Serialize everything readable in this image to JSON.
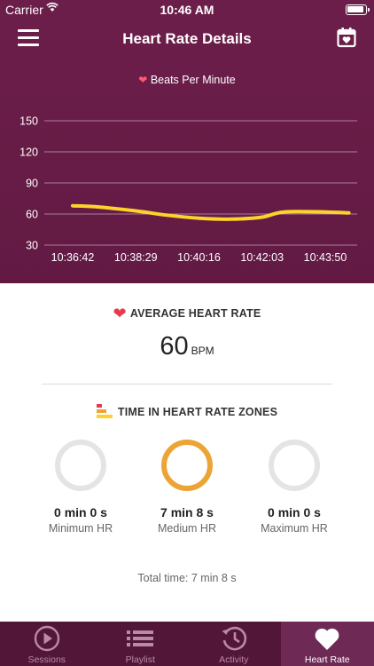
{
  "status_bar": {
    "carrier": "Carrier",
    "time": "10:46 AM"
  },
  "nav": {
    "title": "Heart Rate Details",
    "left_icon": "menu-icon",
    "right_icon": "calendar-heart-icon"
  },
  "chart_data": {
    "type": "line",
    "legend": "Beats Per Minute",
    "title": "",
    "xlabel": "",
    "ylabel": "",
    "y_ticks": [
      150,
      120,
      90,
      60,
      30
    ],
    "ylim": [
      30,
      150
    ],
    "x_ticks": [
      "10:36:42",
      "10:38:29",
      "10:40:16",
      "10:42:03",
      "10:43:50"
    ],
    "series": [
      {
        "color": "#fdd22a",
        "x": [
          "10:36:42",
          "10:37:20",
          "10:38:29",
          "10:39:20",
          "10:40:16",
          "10:41:10",
          "10:42:03",
          "10:42:40",
          "10:43:50",
          "10:44:30"
        ],
        "y": [
          68,
          67,
          63,
          59,
          56,
          55,
          57,
          62,
          62,
          61
        ]
      }
    ],
    "grid": true,
    "colors": {
      "background": "#6c1e4a",
      "gridline": "#a9809a",
      "line": "#fdd22a"
    }
  },
  "average": {
    "title": "AVERAGE HEART RATE",
    "value": "60",
    "unit": "BPM"
  },
  "zones": {
    "title": "TIME IN HEART RATE ZONES",
    "items": [
      {
        "duration": "0 min 0 s",
        "label": "Minimum HR",
        "active": false
      },
      {
        "duration": "7 min 8 s",
        "label": "Medium HR",
        "active": true
      },
      {
        "duration": "0 min 0 s",
        "label": "Maximum HR",
        "active": false
      }
    ],
    "total": "Total time: 7 min 8 s"
  },
  "tabs": [
    {
      "label": "Sessions",
      "icon": "play-circle-icon",
      "active": false
    },
    {
      "label": "Playlist",
      "icon": "list-icon",
      "active": false
    },
    {
      "label": "Activity",
      "icon": "history-icon",
      "active": false
    },
    {
      "label": "Heart Rate",
      "icon": "heart-icon",
      "active": true
    }
  ],
  "colors": {
    "header": "#6c1e4a",
    "accent": "#eca436",
    "heart": "#e83a4c",
    "tabbar": "#521638"
  }
}
